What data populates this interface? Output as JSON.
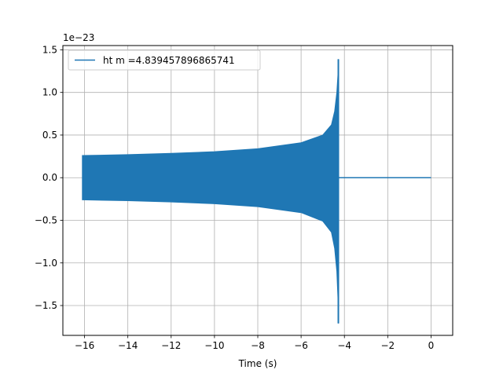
{
  "colors": {
    "series": "#1f77b4",
    "grid": "#b0b0b0",
    "axes": "#000000",
    "background": "#ffffff"
  },
  "chart_data": {
    "type": "line",
    "title": "",
    "xlabel": "Time (s)",
    "ylabel": "",
    "y_offset_label": "1e−23",
    "xlim": [
      -17.0,
      1.0
    ],
    "ylim": [
      -1.85,
      1.55
    ],
    "grid": true,
    "legend_position": "upper-left",
    "x_ticks": [
      -16,
      -14,
      -12,
      -10,
      -8,
      -6,
      -4,
      -2,
      0
    ],
    "x_tick_labels": [
      "−16",
      "−14",
      "−12",
      "−10",
      "−8",
      "−6",
      "−4",
      "−2",
      "0"
    ],
    "y_ticks": [
      -1.5,
      -1.0,
      -0.5,
      0.0,
      0.5,
      1.0,
      1.5
    ],
    "y_tick_labels": [
      "−1.5",
      "−1.0",
      "−0.5",
      "0.0",
      "0.5",
      "1.0",
      "1.5"
    ],
    "series": [
      {
        "name": "ht m =4.839457896865741",
        "description_start_s": -16.1,
        "merger_time_s": -4.28,
        "end_time_s": 0.0,
        "envelope": {
          "x": [
            -16.1,
            -14.0,
            -12.0,
            -10.0,
            -8.0,
            -6.0,
            -5.0,
            -4.6,
            -4.45,
            -4.35,
            -4.3,
            -4.28
          ],
          "upper": [
            0.26,
            0.27,
            0.285,
            0.305,
            0.34,
            0.41,
            0.5,
            0.62,
            0.78,
            1.0,
            1.2,
            1.39
          ],
          "lower": [
            -0.26,
            -0.27,
            -0.285,
            -0.305,
            -0.34,
            -0.41,
            -0.51,
            -0.64,
            -0.83,
            -1.1,
            -1.4,
            -1.71
          ]
        },
        "post_merger_value": 0.0
      }
    ]
  }
}
